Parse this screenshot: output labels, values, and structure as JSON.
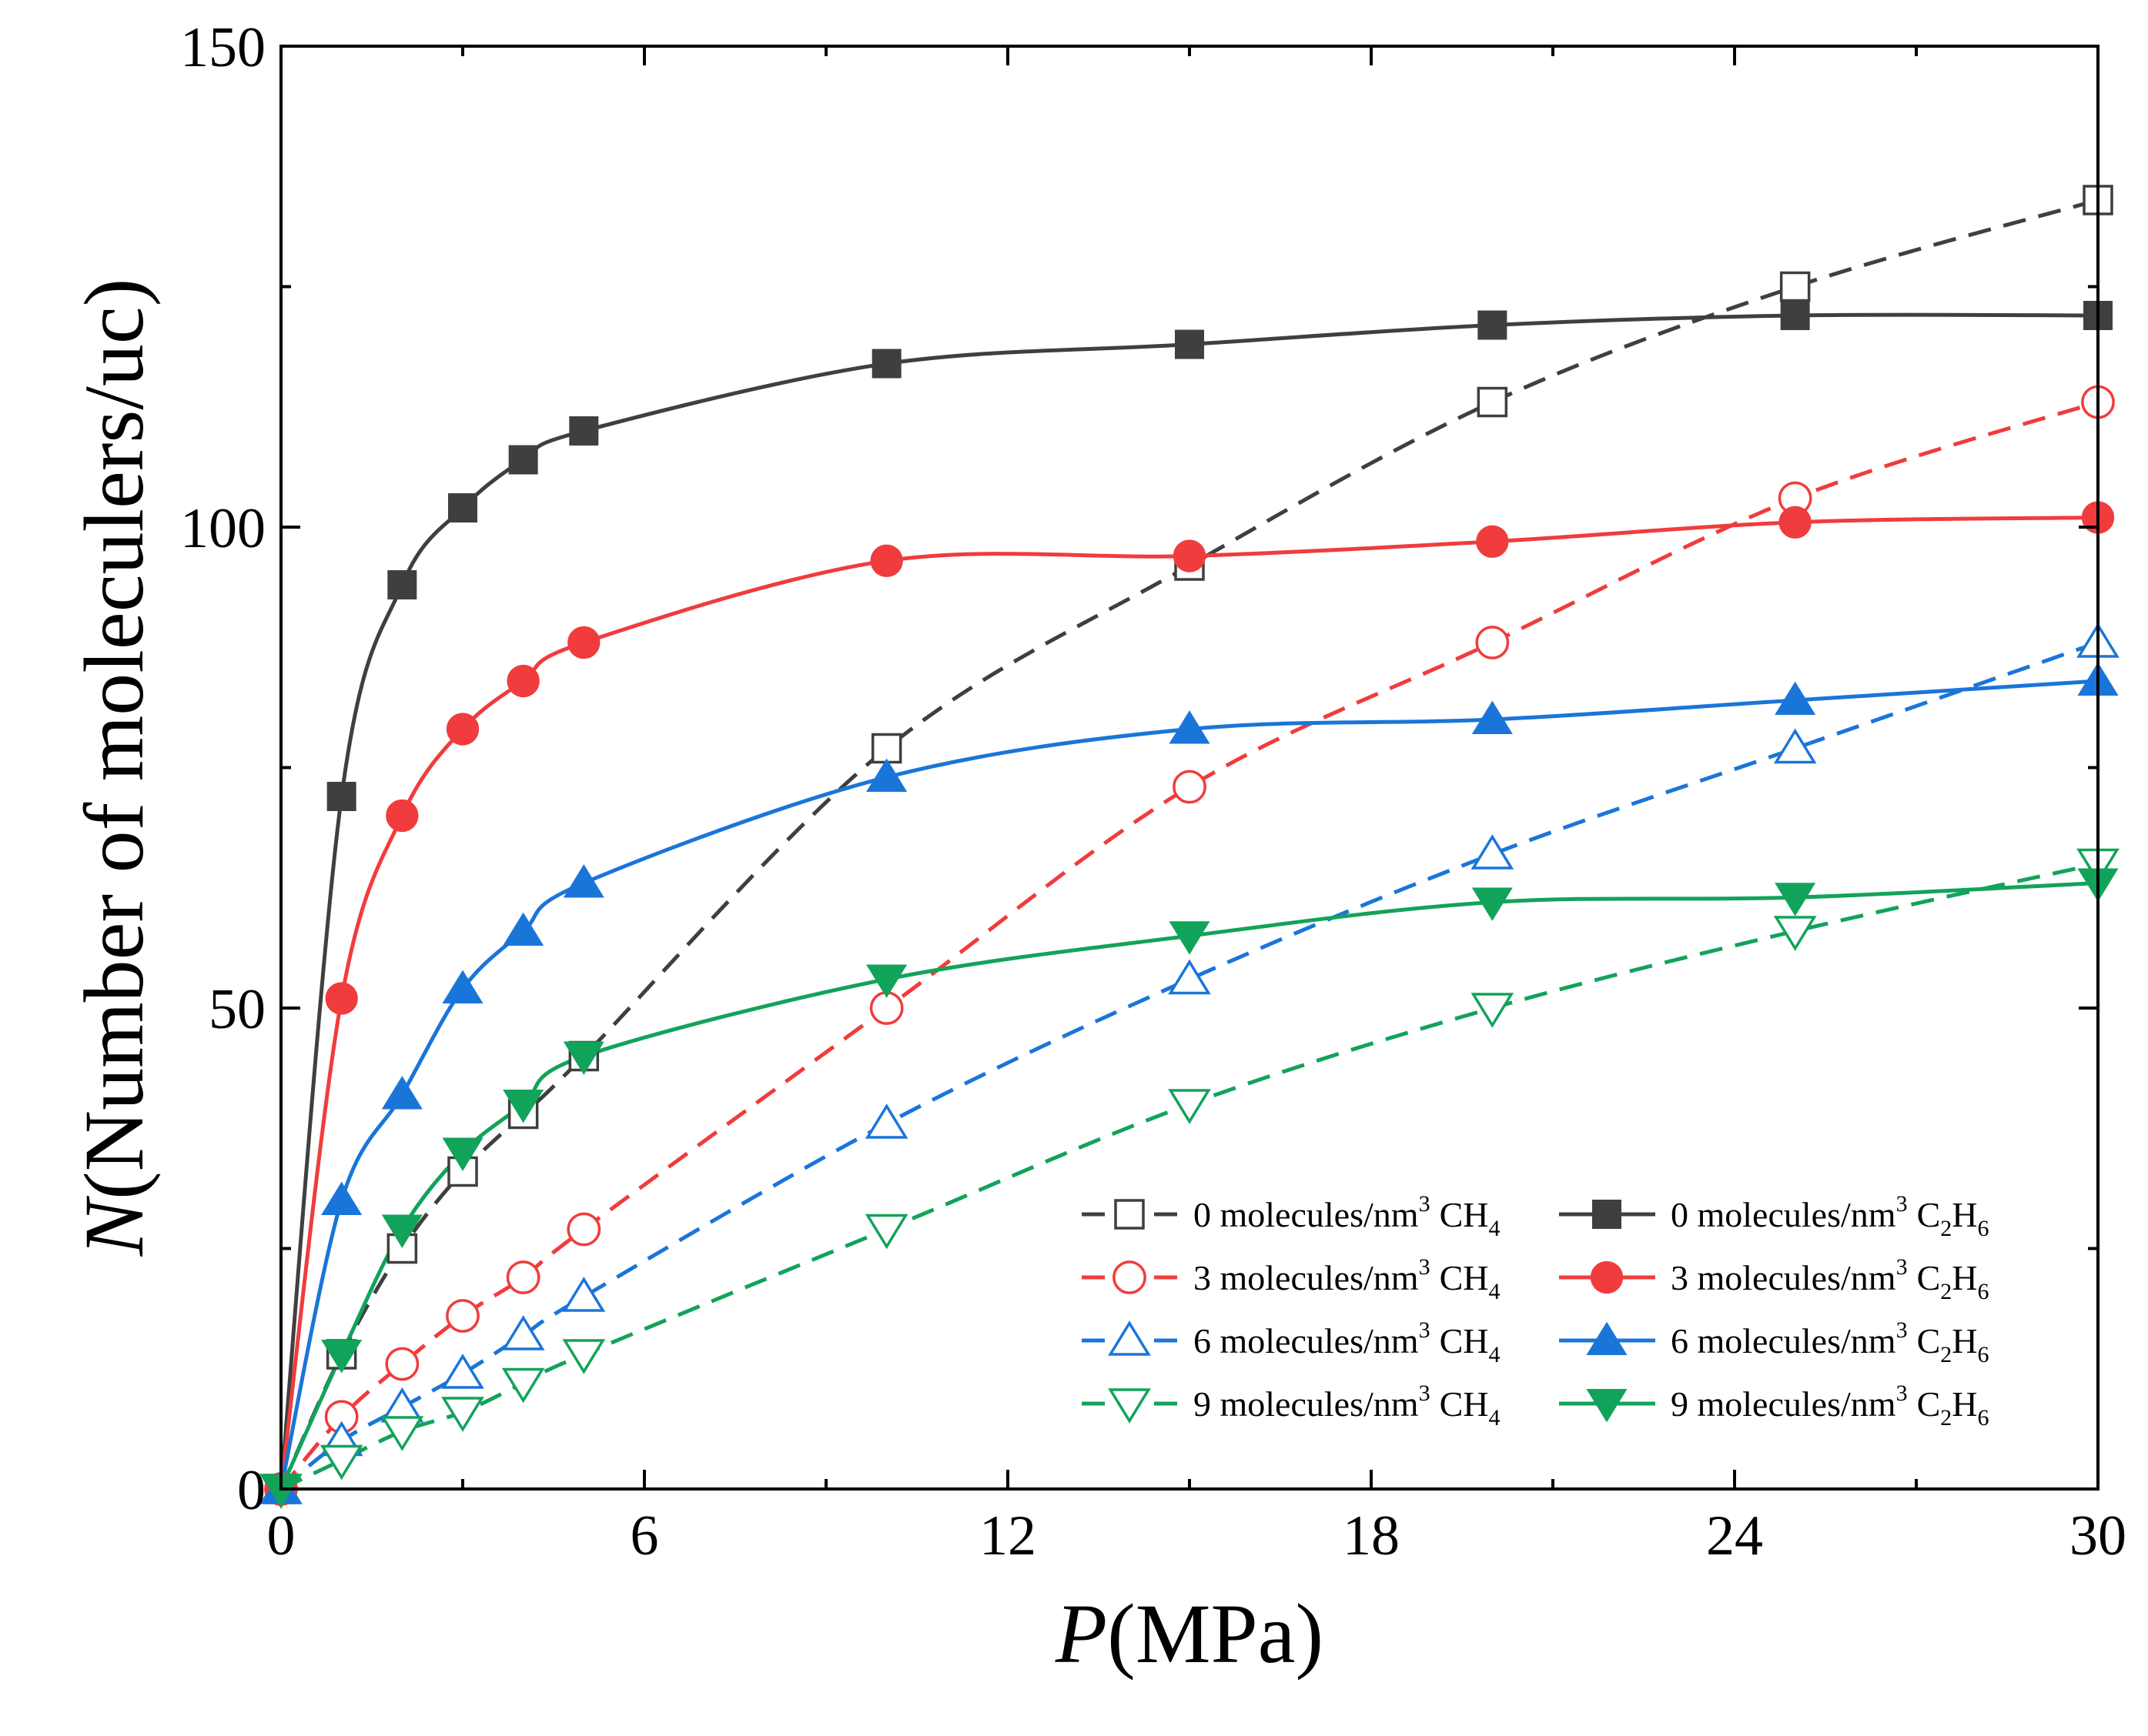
{
  "chart_data": {
    "type": "scatter",
    "xlabel_italic": "P",
    "xlabel_rest": "(MPa)",
    "ylabel_italic": "N",
    "ylabel_rest": "(Number of moleculers/uc)",
    "xlim": [
      0,
      30
    ],
    "ylim": [
      0,
      150
    ],
    "xticks": [
      0,
      6,
      12,
      18,
      24,
      30
    ],
    "yticks": [
      0,
      50,
      100,
      150
    ],
    "x": [
      0,
      1,
      2,
      3,
      4,
      5,
      10,
      15,
      20,
      25,
      30
    ],
    "series": [
      {
        "name": "0 molecules/nm³ CH₄",
        "legend_lead": "0 molecules/nm",
        "legend_sup": "3",
        "legend_gas": "CH",
        "legend_sub": "4",
        "legend_gas2": "",
        "legend_sub2": "",
        "color": "#3f3f3f",
        "marker": "square",
        "filled": false,
        "dashed": true,
        "values": [
          0,
          14,
          25,
          33,
          39,
          45,
          77,
          96,
          113,
          125,
          134
        ]
      },
      {
        "name": "3 molecules/nm³ CH₄",
        "legend_lead": "3 molecules/nm",
        "legend_sup": "3",
        "legend_gas": "CH",
        "legend_sub": "4",
        "legend_gas2": "",
        "legend_sub2": "",
        "color": "#f03c3c",
        "marker": "circle",
        "filled": false,
        "dashed": true,
        "values": [
          0,
          7.5,
          13,
          18,
          22,
          27,
          50,
          73,
          88,
          103,
          113
        ]
      },
      {
        "name": "6 molecules/nm³ CH₄",
        "legend_lead": "6 molecules/nm",
        "legend_sup": "3",
        "legend_gas": "CH",
        "legend_sub": "4",
        "legend_gas2": "",
        "legend_sub2": "",
        "color": "#1a75d9",
        "marker": "triangle-up",
        "filled": false,
        "dashed": true,
        "values": [
          0,
          5,
          8.5,
          12,
          16,
          20,
          38,
          53,
          66,
          77,
          88
        ]
      },
      {
        "name": "9 molecules/nm³ CH₄",
        "legend_lead": "9 molecules/nm",
        "legend_sup": "3",
        "legend_gas": "CH",
        "legend_sub": "4",
        "legend_gas2": "",
        "legend_sub2": "",
        "color": "#12a35a",
        "marker": "triangle-down",
        "filled": false,
        "dashed": true,
        "values": [
          0,
          3,
          6,
          8,
          11,
          14,
          27,
          40,
          50,
          58,
          65
        ]
      },
      {
        "name": "0 molecules/nm³ C₂H₆",
        "legend_lead": "0 molecules/nm",
        "legend_sup": "3",
        "legend_gas": "C",
        "legend_sub": "2",
        "legend_gas2": "H",
        "legend_sub2": "6",
        "color": "#3f3f3f",
        "marker": "square",
        "filled": true,
        "dashed": false,
        "values": [
          0,
          72,
          94,
          102,
          107,
          110,
          117,
          119,
          121,
          122,
          122
        ]
      },
      {
        "name": "3 molecules/nm³ C₂H₆",
        "legend_lead": "3 molecules/nm",
        "legend_sup": "3",
        "legend_gas": "C",
        "legend_sub": "2",
        "legend_gas2": "H",
        "legend_sub2": "6",
        "color": "#f03c3c",
        "marker": "circle",
        "filled": true,
        "dashed": false,
        "values": [
          0,
          51,
          70,
          79,
          84,
          88,
          96.5,
          97,
          98.5,
          100.5,
          101
        ]
      },
      {
        "name": "6 molecules/nm³ C₂H₆",
        "legend_lead": "6 molecules/nm",
        "legend_sup": "3",
        "legend_gas": "C",
        "legend_sub": "2",
        "legend_gas2": "H",
        "legend_sub2": "6",
        "color": "#1a75d9",
        "marker": "triangle-up",
        "filled": true,
        "dashed": false,
        "values": [
          0,
          30,
          41,
          52,
          58,
          63,
          74,
          79,
          80,
          82,
          84
        ]
      },
      {
        "name": "9 molecules/nm³ C₂H₆",
        "legend_lead": "9 molecules/nm",
        "legend_sup": "3",
        "legend_gas": "C",
        "legend_sub": "2",
        "legend_gas2": "H",
        "legend_sub2": "6",
        "color": "#12a35a",
        "marker": "triangle-down",
        "filled": true,
        "dashed": false,
        "values": [
          0,
          14,
          27,
          35,
          40,
          45,
          53,
          57.5,
          61,
          61.5,
          63
        ]
      }
    ],
    "legend_order": [
      0,
      4,
      1,
      5,
      2,
      6,
      3,
      7
    ],
    "legend_position": "bottom-right",
    "grid": false
  }
}
